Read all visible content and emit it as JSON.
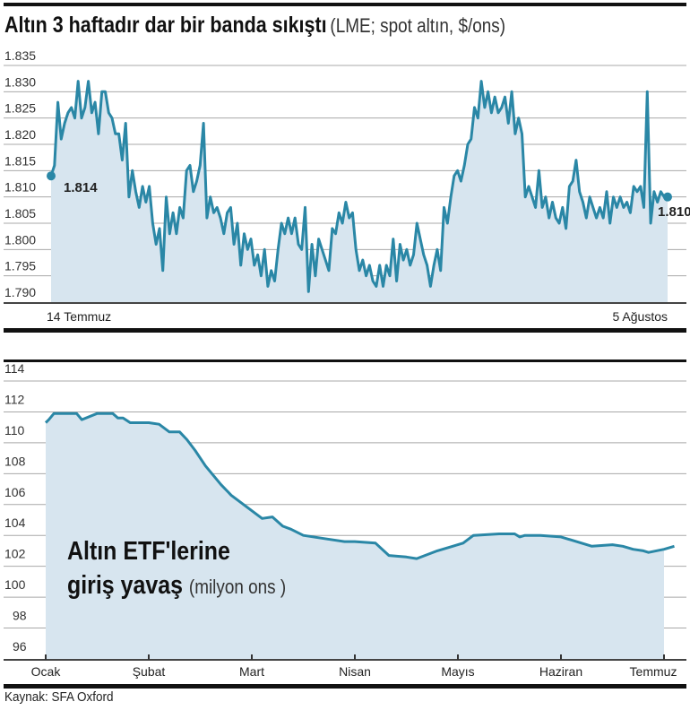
{
  "colors": {
    "line": "#2a87a6",
    "fill": "#d7e5ef",
    "grid": "#a8a8a8",
    "rule": "#111111"
  },
  "chart_data": [
    {
      "type": "area",
      "title": "Altın 3 haftadır dar bir banda sıkıştı",
      "subtitle": "(LME; spot altın, $/ons)",
      "ylim": [
        1790,
        1835
      ],
      "yticks": [
        1835,
        1830,
        1825,
        1820,
        1815,
        1810,
        1805,
        1800,
        1795,
        1790
      ],
      "ytick_labels": [
        "1.835",
        "1.830",
        "1.825",
        "1.820",
        "1.815",
        "1.810",
        "1.805",
        "1.800",
        "1.795",
        "1.790"
      ],
      "xtick_labels": [
        "14 Temmuz",
        "5 Ağustos"
      ],
      "grid": true,
      "start_label": "1.814",
      "end_label": "1.810",
      "values": [
        1814,
        1816,
        1828,
        1821,
        1824,
        1826,
        1827,
        1825,
        1832,
        1825,
        1827,
        1832,
        1826,
        1828,
        1822,
        1830,
        1830,
        1826,
        1825,
        1822,
        1822,
        1817,
        1824,
        1810,
        1815,
        1811,
        1808,
        1812,
        1809,
        1812,
        1805,
        1801,
        1804,
        1796,
        1810,
        1803,
        1807,
        1803,
        1808,
        1806,
        1815,
        1816,
        1811,
        1813,
        1816,
        1824,
        1806,
        1810,
        1807,
        1808,
        1806,
        1803,
        1807,
        1808,
        1801,
        1805,
        1797,
        1803,
        1800,
        1802,
        1797,
        1799,
        1795,
        1800,
        1793,
        1796,
        1794,
        1800,
        1805,
        1803,
        1806,
        1803,
        1806,
        1801,
        1800,
        1808,
        1792,
        1801,
        1795,
        1802,
        1800,
        1798,
        1796,
        1804,
        1803,
        1807,
        1805,
        1809,
        1806,
        1807,
        1800,
        1796,
        1798,
        1795,
        1797,
        1794,
        1793,
        1797,
        1793,
        1797,
        1795,
        1802,
        1794,
        1801,
        1798,
        1800,
        1797,
        1799,
        1805,
        1802,
        1799,
        1797,
        1793,
        1797,
        1800,
        1796,
        1808,
        1805,
        1810,
        1814,
        1815,
        1813,
        1816,
        1820,
        1821,
        1827,
        1825,
        1832,
        1827,
        1830,
        1826,
        1829,
        1826,
        1827,
        1829,
        1824,
        1830,
        1822,
        1825,
        1822,
        1810,
        1812,
        1810,
        1808,
        1815,
        1808,
        1810,
        1806,
        1809,
        1806,
        1805,
        1808,
        1804,
        1812,
        1813,
        1817,
        1811,
        1809,
        1806,
        1810,
        1808,
        1806,
        1808,
        1806,
        1811,
        1805,
        1810,
        1808,
        1810,
        1808,
        1809,
        1807,
        1812,
        1811,
        1812,
        1808,
        1830,
        1805,
        1811,
        1809,
        1811,
        1810,
        1810
      ]
    },
    {
      "type": "area",
      "title": "Altın ETF'lerine giriş yavaş",
      "unit": "(milyon ons )",
      "ylim": [
        96,
        114
      ],
      "yticks": [
        114,
        112,
        110,
        108,
        106,
        104,
        102,
        100,
        98,
        96
      ],
      "ytick_labels": [
        "114",
        "112",
        "110",
        "108",
        "106",
        "104",
        "102",
        "100",
        "98",
        "96"
      ],
      "categories": [
        "Ocak",
        "Şubat",
        "Mart",
        "Nisan",
        "Mayıs",
        "Haziran",
        "Temmuz"
      ],
      "grid": true,
      "x": [
        0,
        0.03,
        0.08,
        0.3,
        0.35,
        0.5,
        0.65,
        0.7,
        0.75,
        0.82,
        1.0,
        1.1,
        1.2,
        1.3,
        1.37,
        1.45,
        1.55,
        1.7,
        1.8,
        1.9,
        2.0,
        2.1,
        2.2,
        2.3,
        2.38,
        2.5,
        2.7,
        2.9,
        3.0,
        3.2,
        3.33,
        3.5,
        3.6,
        3.8,
        4.0,
        4.05,
        4.15,
        4.4,
        4.55,
        4.6,
        4.65,
        4.8,
        5.0,
        5.2,
        5.3,
        5.5,
        5.6,
        5.7,
        5.8,
        5.85,
        6.0,
        6.1
      ],
      "values": [
        111.3,
        111.5,
        111.9,
        111.9,
        111.5,
        111.9,
        111.9,
        111.6,
        111.6,
        111.3,
        111.3,
        111.2,
        110.7,
        110.7,
        110.2,
        109.5,
        108.5,
        107.3,
        106.6,
        106.1,
        105.6,
        105.1,
        105.2,
        104.6,
        104.4,
        104.0,
        103.8,
        103.6,
        103.6,
        103.5,
        102.7,
        102.6,
        102.5,
        103.0,
        103.4,
        103.5,
        104.0,
        104.1,
        104.1,
        103.9,
        104.0,
        104.0,
        103.9,
        103.5,
        103.3,
        103.4,
        103.3,
        103.1,
        103.0,
        102.9,
        103.1,
        103.3
      ]
    }
  ],
  "etf_label": {
    "line1": "Altın ETF'lerine",
    "line2": "giriş yavaş",
    "unit": "(milyon ons )"
  },
  "source": "Kaynak: SFA Oxford"
}
